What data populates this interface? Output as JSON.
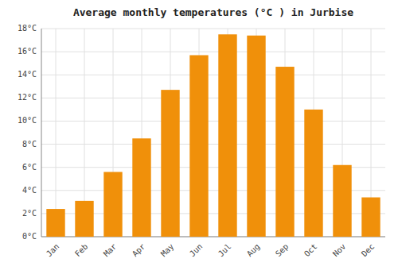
{
  "chart_data": {
    "type": "bar",
    "title": "Average monthly temperatures (°C ) in Jurbise",
    "categories": [
      "Jan",
      "Feb",
      "Mar",
      "Apr",
      "May",
      "Jun",
      "Jul",
      "Aug",
      "Sep",
      "Oct",
      "Nov",
      "Dec"
    ],
    "values": [
      2.4,
      3.1,
      5.6,
      8.5,
      12.7,
      15.7,
      17.5,
      17.4,
      14.7,
      11.0,
      6.2,
      3.4
    ],
    "color": "#F0900A",
    "ylim": [
      0,
      18
    ],
    "yticks": [
      {
        "value": 0,
        "label": "0°C"
      },
      {
        "value": 2,
        "label": "2°C"
      },
      {
        "value": 4,
        "label": "4°C"
      },
      {
        "value": 6,
        "label": "6°C"
      },
      {
        "value": 8,
        "label": "8°C"
      },
      {
        "value": 10,
        "label": "10°C"
      },
      {
        "value": 12,
        "label": "12°C"
      },
      {
        "value": 14,
        "label": "14°C"
      },
      {
        "value": 16,
        "label": "16°C"
      },
      {
        "value": 18,
        "label": "18°C"
      }
    ],
    "grid": true
  }
}
